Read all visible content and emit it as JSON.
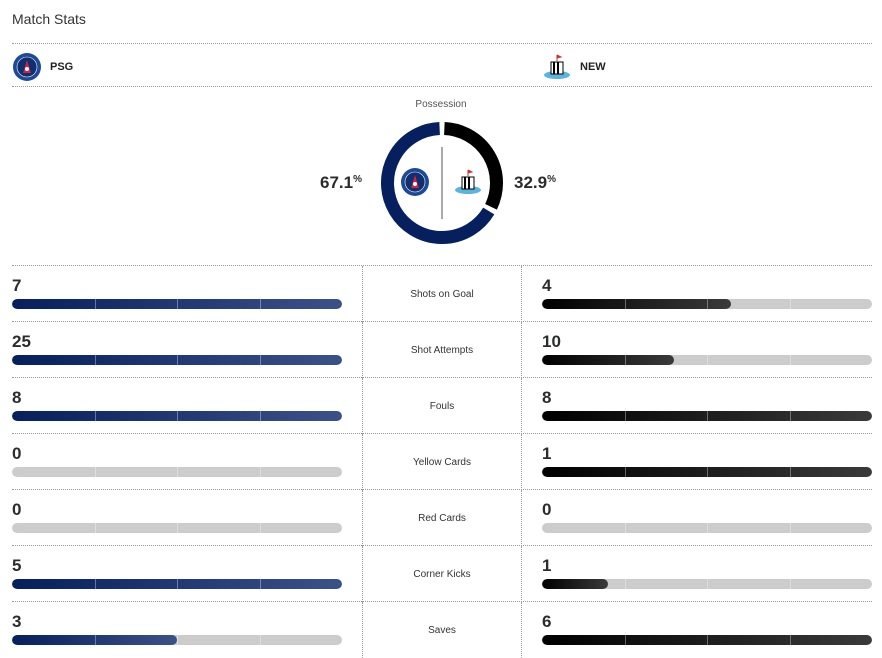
{
  "title": "Match Stats",
  "home": {
    "abbr": "PSG",
    "possession": "67.1",
    "color": "#061f5e"
  },
  "away": {
    "abbr": "NEW",
    "possession": "32.9",
    "color": "#000000"
  },
  "possession_label": "Possession",
  "percent_sign": "%",
  "stats": [
    {
      "label": "Shots on Goal",
      "home": 7,
      "away": 4
    },
    {
      "label": "Shot Attempts",
      "home": 25,
      "away": 10
    },
    {
      "label": "Fouls",
      "home": 8,
      "away": 8
    },
    {
      "label": "Yellow Cards",
      "home": 0,
      "away": 1
    },
    {
      "label": "Red Cards",
      "home": 0,
      "away": 0
    },
    {
      "label": "Corner Kicks",
      "home": 5,
      "away": 1
    },
    {
      "label": "Saves",
      "home": 3,
      "away": 6
    }
  ]
}
